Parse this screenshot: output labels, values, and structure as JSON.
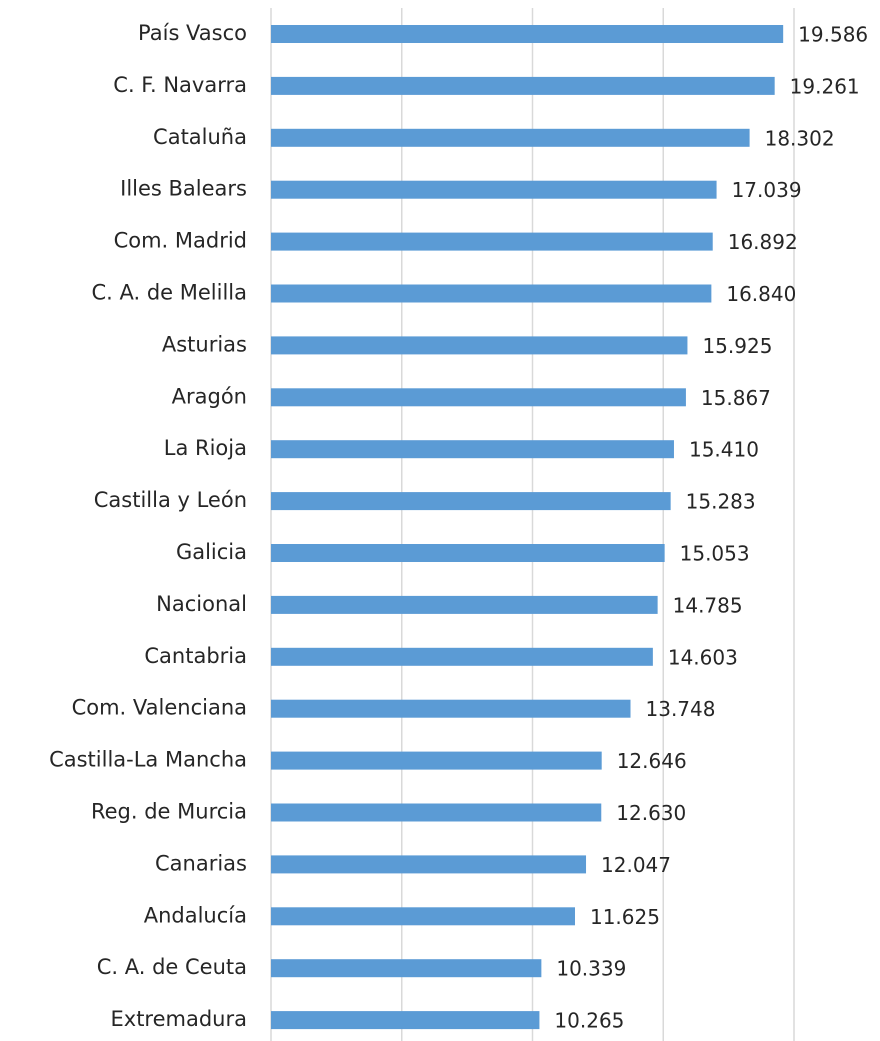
{
  "chart_data": {
    "type": "barh",
    "categories": [
      "País Vasco",
      "C. F. Navarra",
      "Cataluña",
      "Illes Balears",
      "Com. Madrid",
      "C. A. de Melilla",
      "Asturias",
      "Aragón",
      "La Rioja",
      "Castilla y León",
      "Galicia",
      "Nacional",
      "Cantabria",
      "Com. Valenciana",
      "Castilla-La Mancha",
      "Reg. de Murcia",
      "Canarias",
      "Andalucía",
      "C. A. de Ceuta",
      "Extremadura"
    ],
    "values": [
      19586,
      19261,
      18302,
      17039,
      16892,
      16840,
      15925,
      15867,
      15410,
      15283,
      15053,
      14785,
      14603,
      13748,
      12646,
      12630,
      12047,
      11625,
      10339,
      10265
    ],
    "value_labels": [
      "19.586",
      "19.261",
      "18.302",
      "17.039",
      "16.892",
      "16.840",
      "15.925",
      "15.867",
      "15.410",
      "15.283",
      "15.053",
      "14.785",
      "14.603",
      "13.748",
      "12.646",
      "12.630",
      "12.047",
      "11.625",
      "10.339",
      "10.265"
    ],
    "color": "#5b9bd5",
    "xlim": [
      0,
      20000
    ],
    "xticks": [
      0,
      5000,
      10000,
      15000,
      20000
    ],
    "grid": true
  }
}
